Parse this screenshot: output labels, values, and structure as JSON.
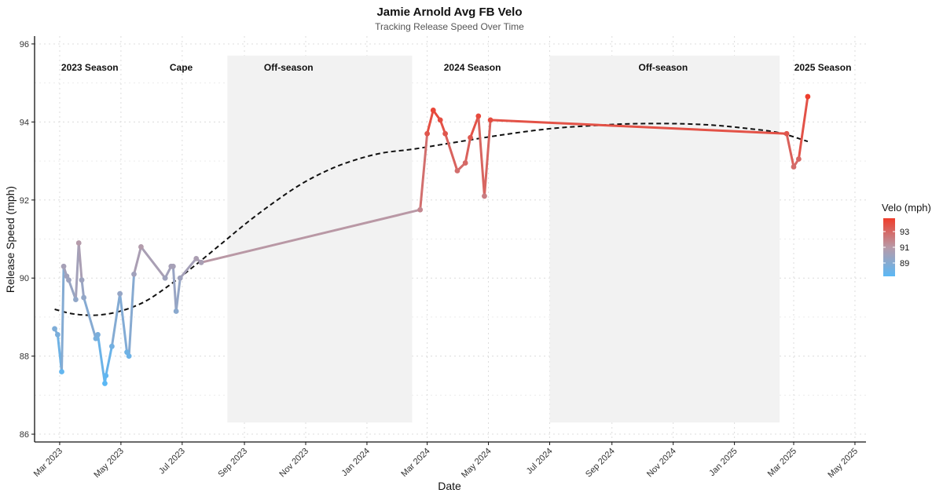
{
  "chart_data": {
    "type": "line",
    "title": "Jamie Arnold Avg FB Velo",
    "subtitle": "Tracking Release Speed Over Time",
    "xlabel": "Date",
    "ylabel": "Release Speed (mph)",
    "xlim": [
      "2023-02-04",
      "2025-05-12"
    ],
    "ylim": [
      85.8,
      96.2
    ],
    "x_ticks": [
      "2023-03-01",
      "2023-05-01",
      "2023-07-01",
      "2023-09-01",
      "2023-11-01",
      "2024-01-01",
      "2024-03-01",
      "2024-05-01",
      "2024-07-01",
      "2024-09-01",
      "2024-11-01",
      "2025-01-01",
      "2025-03-01",
      "2025-05-01"
    ],
    "x_tick_labels": [
      "Mar 2023",
      "May 2023",
      "Jul 2023",
      "Sep 2023",
      "Nov 2023",
      "Jan 2024",
      "Mar 2024",
      "May 2024",
      "Jul 2024",
      "Sep 2024",
      "Nov 2024",
      "Jan 2025",
      "Mar 2025",
      "May 2025"
    ],
    "y_ticks": [
      86,
      88,
      90,
      92,
      94,
      96
    ],
    "grid": true,
    "shaded_regions": [
      {
        "label": "Off-season",
        "x_start": "2023-08-15",
        "x_end": "2024-02-15",
        "y_range": [
          86.3,
          95.7
        ]
      },
      {
        "label": "Off-season",
        "x_start": "2024-07-01",
        "x_end": "2025-02-15",
        "y_range": [
          86.3,
          95.7
        ]
      }
    ],
    "annotations": [
      {
        "text": "2023 Season",
        "x": "2023-03-31",
        "y": 95.4
      },
      {
        "text": "Cape",
        "x": "2023-06-30",
        "y": 95.4
      },
      {
        "text": "Off-season",
        "x": "2023-10-15",
        "y": 95.4
      },
      {
        "text": "2024 Season",
        "x": "2024-04-15",
        "y": 95.4
      },
      {
        "text": "Off-season",
        "x": "2024-10-22",
        "y": 95.4
      },
      {
        "text": "2025 Season",
        "x": "2025-03-30",
        "y": 95.4
      }
    ],
    "series": [
      {
        "name": "Avg FB Velo",
        "points": [
          [
            "2023-02-24",
            88.7
          ],
          [
            "2023-02-27",
            88.55
          ],
          [
            "2023-03-03",
            87.6
          ],
          [
            "2023-03-05",
            90.3
          ],
          [
            "2023-03-08",
            90.05
          ],
          [
            "2023-03-10",
            89.95
          ],
          [
            "2023-03-17",
            89.45
          ],
          [
            "2023-03-20",
            90.9
          ],
          [
            "2023-03-23",
            89.95
          ],
          [
            "2023-03-25",
            89.5
          ],
          [
            "2023-04-06",
            88.45
          ],
          [
            "2023-04-08",
            88.55
          ],
          [
            "2023-04-15",
            87.3
          ],
          [
            "2023-04-16",
            87.5
          ],
          [
            "2023-04-22",
            88.25
          ],
          [
            "2023-04-30",
            89.6
          ],
          [
            "2023-05-07",
            88.1
          ],
          [
            "2023-05-09",
            88.0
          ],
          [
            "2023-05-14",
            90.1
          ],
          [
            "2023-05-21",
            90.8
          ],
          [
            "2023-06-14",
            90.0
          ],
          [
            "2023-06-20",
            90.3
          ],
          [
            "2023-06-22",
            90.3
          ],
          [
            "2023-06-25",
            89.15
          ],
          [
            "2023-06-29",
            90.0
          ],
          [
            "2023-07-15",
            90.5
          ],
          [
            "2023-07-20",
            90.4
          ],
          [
            "2024-02-23",
            91.75
          ],
          [
            "2024-03-01",
            93.7
          ],
          [
            "2024-03-07",
            94.3
          ],
          [
            "2024-03-14",
            94.05
          ],
          [
            "2024-03-19",
            93.7
          ],
          [
            "2024-03-31",
            92.75
          ],
          [
            "2024-04-08",
            92.95
          ],
          [
            "2024-04-13",
            93.6
          ],
          [
            "2024-04-21",
            94.15
          ],
          [
            "2024-04-27",
            92.1
          ],
          [
            "2024-05-03",
            94.05
          ],
          [
            "2025-02-22",
            93.7
          ],
          [
            "2025-02-29",
            92.85
          ],
          [
            "2025-03-06",
            93.05
          ],
          [
            "2025-03-15",
            94.65
          ]
        ]
      },
      {
        "name": "Smoothed trend",
        "style": "dashed",
        "points": [
          [
            "2023-02-24",
            89.2
          ],
          [
            "2023-03-15",
            89.08
          ],
          [
            "2023-04-07",
            89.05
          ],
          [
            "2023-04-30",
            89.15
          ],
          [
            "2023-05-25",
            89.4
          ],
          [
            "2023-06-20",
            89.85
          ],
          [
            "2023-07-15",
            90.35
          ],
          [
            "2023-08-10",
            90.9
          ],
          [
            "2023-09-05",
            91.45
          ],
          [
            "2023-10-01",
            91.95
          ],
          [
            "2023-10-27",
            92.4
          ],
          [
            "2023-11-22",
            92.75
          ],
          [
            "2023-12-17",
            93.0
          ],
          [
            "2024-01-15",
            93.2
          ],
          [
            "2024-02-15",
            93.3
          ],
          [
            "2024-03-15",
            93.42
          ],
          [
            "2024-04-15",
            93.55
          ],
          [
            "2024-05-15",
            93.67
          ],
          [
            "2024-06-15",
            93.78
          ],
          [
            "2024-07-15",
            93.86
          ],
          [
            "2024-08-15",
            93.91
          ],
          [
            "2024-09-15",
            93.95
          ],
          [
            "2024-10-15",
            93.96
          ],
          [
            "2024-11-15",
            93.95
          ],
          [
            "2024-12-15",
            93.91
          ],
          [
            "2025-01-15",
            93.83
          ],
          [
            "2025-02-15",
            93.72
          ],
          [
            "2025-03-15",
            93.5
          ]
        ]
      }
    ],
    "legend": {
      "title": "Velo (mph)",
      "labels": [
        "93",
        "91",
        "89"
      ],
      "label_values": [
        93,
        91,
        89
      ],
      "range": [
        87.3,
        94.7
      ],
      "colors": [
        "#ef3d2b",
        "#b89aa8",
        "#5bb8f5"
      ],
      "placement": "right"
    }
  }
}
